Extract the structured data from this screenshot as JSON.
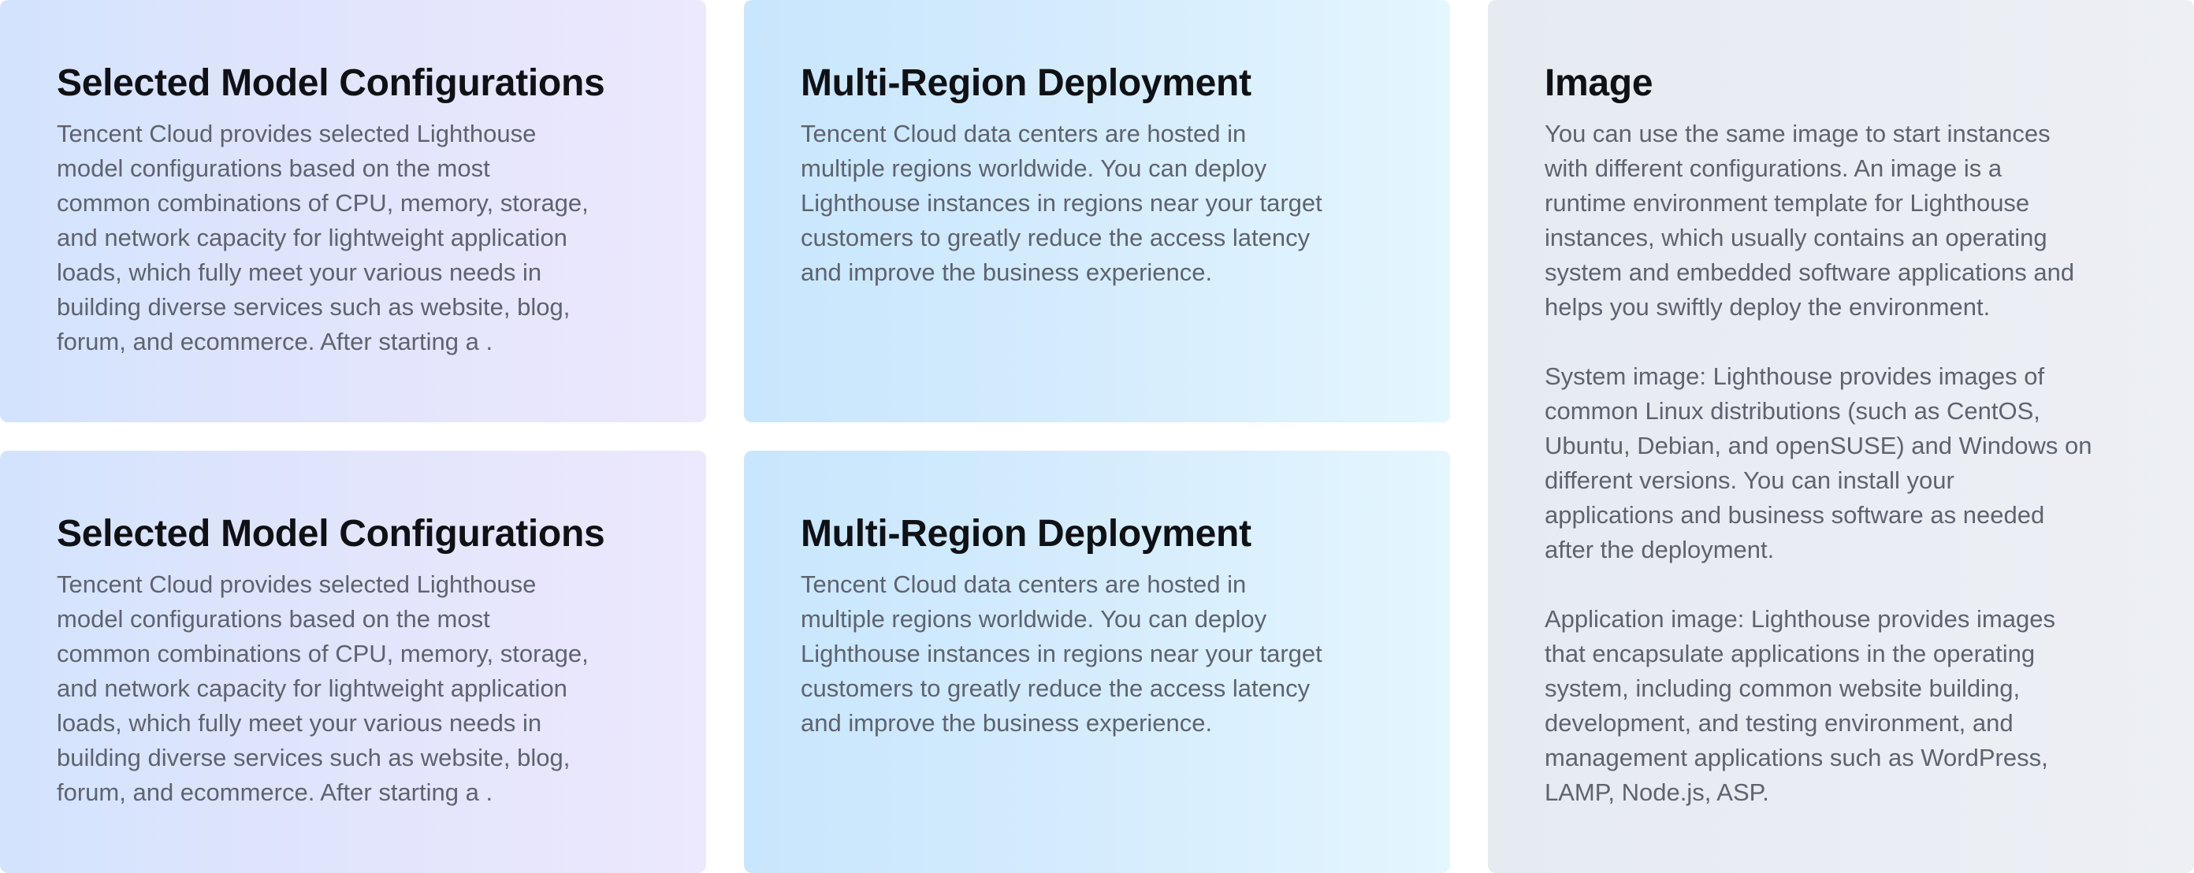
{
  "cards": {
    "config_top": {
      "title": "Selected Model Configurations",
      "text": "Tencent Cloud provides selected Lighthouse\nmodel configurations based on the most\ncommon combinations of CPU, memory, storage,\nand network capacity for lightweight application\nloads, which fully meet your various needs in\nbuilding diverse services such as website, blog,\nforum, and ecommerce. After starting a ."
    },
    "region_top": {
      "title": "Multi-Region Deployment",
      "text": "Tencent Cloud data centers are hosted in\nmultiple regions worldwide. You can deploy\nLighthouse instances in regions near your target\ncustomers to greatly reduce the access latency\nand improve the business experience."
    },
    "config_bottom": {
      "title": "Selected Model Configurations",
      "text": "Tencent Cloud provides selected Lighthouse\nmodel configurations based on the most\ncommon combinations of CPU, memory, storage,\nand network capacity for lightweight application\nloads, which fully meet your various needs in\nbuilding diverse services such as website, blog,\nforum, and ecommerce. After starting a ."
    },
    "region_bottom": {
      "title": "Multi-Region Deployment",
      "text": "Tencent Cloud data centers are hosted in\nmultiple regions worldwide. You can deploy\nLighthouse instances in regions near your target\ncustomers to greatly reduce the access latency\nand improve the business experience."
    },
    "image": {
      "title": "Image",
      "paragraphs": [
        "You can use the same image to start instances\nwith different configurations. An image is a\nruntime environment template for Lighthouse\ninstances, which usually contains an operating\nsystem and embedded software applications and\nhelps you swiftly deploy the environment.",
        "System image: Lighthouse provides images of\ncommon Linux distributions (such as CentOS,\nUbuntu, Debian, and openSUSE) and Windows on\ndifferent versions. You can install your\napplications and business software as needed\nafter the deployment.",
        "Application image: Lighthouse provides images\nthat encapsulate applications in the operating\nsystem, including common website building,\ndevelopment, and testing environment, and\nmanagement applications such as WordPress,\nLAMP, Node.js, ASP."
      ]
    }
  },
  "colors": {
    "title": "#0f1115",
    "body": "#5e636f"
  }
}
